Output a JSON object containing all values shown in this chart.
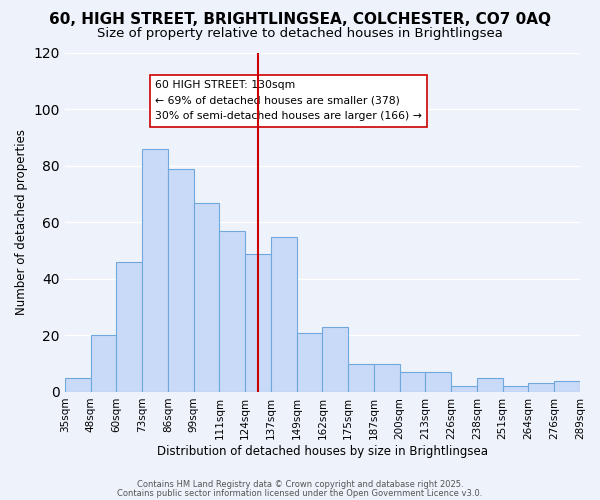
{
  "title": "60, HIGH STREET, BRIGHTLINGSEA, COLCHESTER, CO7 0AQ",
  "subtitle": "Size of property relative to detached houses in Brightlingsea",
  "xlabel": "Distribution of detached houses by size in Brightlingsea",
  "ylabel": "Number of detached properties",
  "bin_edges": [
    "35sqm",
    "48sqm",
    "60sqm",
    "73sqm",
    "86sqm",
    "99sqm",
    "111sqm",
    "124sqm",
    "137sqm",
    "149sqm",
    "162sqm",
    "175sqm",
    "187sqm",
    "200sqm",
    "213sqm",
    "226sqm",
    "238sqm",
    "251sqm",
    "264sqm",
    "276sqm",
    "289sqm"
  ],
  "bar_values": [
    5,
    20,
    46,
    86,
    79,
    67,
    57,
    49,
    55,
    21,
    23,
    10,
    10,
    7,
    7,
    2,
    5,
    2,
    3,
    4
  ],
  "bar_color": "#c9daf8",
  "bar_edge_color": "#6fa8dc",
  "vline_pos": 7.5,
  "vline_color": "#cc0000",
  "annotation_title": "60 HIGH STREET: 130sqm",
  "annotation_line1": "← 69% of detached houses are smaller (378)",
  "annotation_line2": "30% of semi-detached houses are larger (166) →",
  "annotation_box_color": "#ffffff",
  "annotation_box_edge": "#cc0000",
  "ylim": [
    0,
    120
  ],
  "footer1": "Contains HM Land Registry data © Crown copyright and database right 2025.",
  "footer2": "Contains public sector information licensed under the Open Government Licence v3.0.",
  "background_color": "#eef2fb",
  "grid_color": "#ffffff",
  "title_fontsize": 11,
  "subtitle_fontsize": 9.5
}
